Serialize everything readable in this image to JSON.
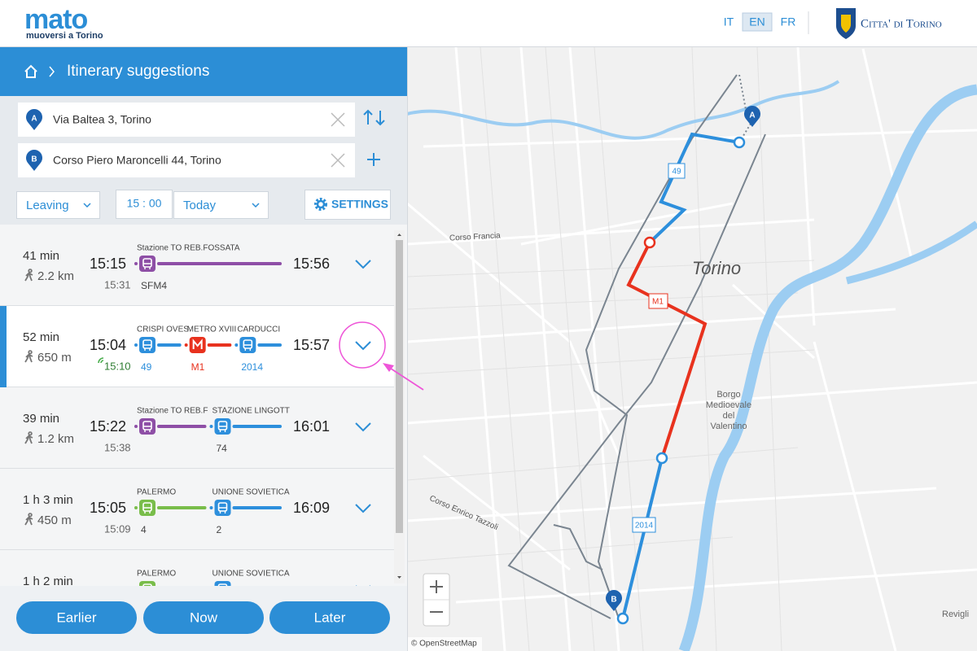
{
  "header": {
    "logo": "mato",
    "logo_sub": "muoversi a Torino",
    "languages": [
      "IT",
      "EN",
      "FR"
    ],
    "city": "Citta' di Torino"
  },
  "panel": {
    "breadcrumb": "Itinerary suggestions",
    "from_marker": "A",
    "from": "Via Baltea 3, Torino",
    "to_marker": "B",
    "to": "Corso Piero Maroncelli 44, Torino",
    "leaving": "Leaving",
    "time": "15 : 00",
    "day": "Today",
    "settings": "SETTINGS"
  },
  "itineraries": [
    {
      "duration": "41 min",
      "distance": "2.2 km",
      "depart": "15:15",
      "time_below": "15:31",
      "arrive": "15:56",
      "legs": [
        {
          "stop": "Stazione TO REB.FOSSATA",
          "line": "SFM4",
          "mode": "train",
          "color": "#8e4fa6"
        }
      ]
    },
    {
      "duration": "52 min",
      "distance": "650 m",
      "depart": "15:04",
      "time_below": "15:10",
      "realtime": true,
      "arrive": "15:57",
      "selected": true,
      "legs": [
        {
          "stop": "CRISPI OVES",
          "line": "49",
          "mode": "bus",
          "color": "#2d8fdc"
        },
        {
          "stop": "METRO XVIII",
          "line": "M1",
          "mode": "metro",
          "color": "#e8321e"
        },
        {
          "stop": "CARDUCCI",
          "line": "2014",
          "mode": "bus",
          "color": "#2d8fdc"
        }
      ]
    },
    {
      "duration": "39 min",
      "distance": "1.2 km",
      "depart": "15:22",
      "time_below": "15:38",
      "arrive": "16:01",
      "legs": [
        {
          "stop": "Stazione TO REB.F",
          "mode": "train",
          "color": "#8e4fa6"
        },
        {
          "stop": "STAZIONE LINGOTT",
          "line": "74",
          "mode": "bus",
          "color": "#2d8fdc"
        }
      ]
    },
    {
      "duration": "1 h 3 min",
      "distance": "450 m",
      "depart": "15:05",
      "time_below": "15:09",
      "arrive": "16:09",
      "legs": [
        {
          "stop": "PALERMO",
          "line": "4",
          "mode": "tram",
          "color": "#79bd4a"
        },
        {
          "stop": "UNIONE SOVIETICA",
          "line": "2",
          "mode": "bus",
          "color": "#2d8fdc"
        }
      ]
    },
    {
      "duration": "1 h 2 min",
      "legs": [
        {
          "stop": "PALERMO",
          "mode": "tram",
          "color": "#79bd4a"
        },
        {
          "stop": "UNIONE SOVIETICA",
          "mode": "bus",
          "color": "#2d8fdc"
        }
      ]
    }
  ],
  "buttons": [
    "Earlier",
    "Now",
    "Later"
  ],
  "map": {
    "city_label": "Torino",
    "streets": [
      "Corso Francia",
      "Corso Enrico Tazzoli"
    ],
    "district": [
      "Borgo",
      "Medioevale",
      "del",
      "Valentino"
    ],
    "place": "Revigli",
    "route_labels": [
      "49",
      "M1",
      "2014"
    ],
    "marker_a": "A",
    "marker_b": "B",
    "attribution": "© OpenStreetMap"
  }
}
